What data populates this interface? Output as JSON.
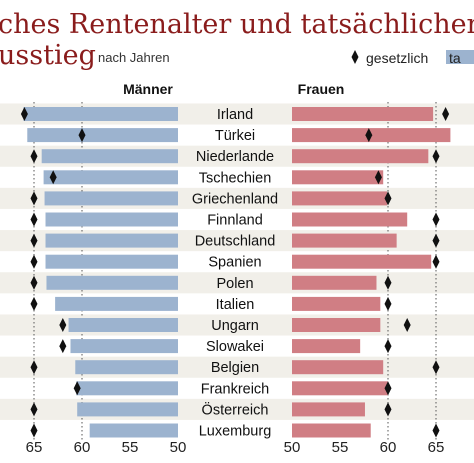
{
  "header": {
    "title_line1": "ches Rentenalter und tatsächlicher",
    "title_line2": "usstieg",
    "subtitle": "nach Jahren"
  },
  "legend": {
    "gesetzlich_label": "gesetzlich",
    "tatsaechlich_label": "ta"
  },
  "colors": {
    "men_bar": "#9cb3cf",
    "women_bar": "#d07e84",
    "title": "#8a1c1c",
    "stripe": "#f1efe9",
    "marker": "#111111"
  },
  "chart_data": {
    "type": "bar",
    "orientation": "horizontal-butterfly",
    "axis": {
      "ticks": [
        65,
        60,
        55,
        50
      ],
      "min": 50,
      "max": 68,
      "reference_lines": [
        60,
        65
      ]
    },
    "panels": {
      "men": {
        "label": "Männer"
      },
      "women": {
        "label": "Frauen"
      }
    },
    "categories": [
      "Irland",
      "Türkei",
      "Niederlande",
      "Tschechien",
      "Griechenland",
      "Finnland",
      "Deutschland",
      "Spanien",
      "Polen",
      "Italien",
      "Ungarn",
      "Slowakei",
      "Belgien",
      "Frankreich",
      "Österreich",
      "Luxemburg"
    ],
    "series": [
      {
        "name": "tatsächlich",
        "panel": "men",
        "values": [
          66.1,
          65.7,
          64.2,
          64.0,
          63.9,
          63.8,
          63.8,
          63.8,
          63.7,
          62.8,
          61.4,
          61.2,
          60.7,
          60.6,
          60.5,
          59.2
        ]
      },
      {
        "name": "gesetzlich",
        "panel": "men",
        "values": [
          66.0,
          60.0,
          65.0,
          63.0,
          65.0,
          65.0,
          65.0,
          65.0,
          65.0,
          65.0,
          62.0,
          62.0,
          65.0,
          60.5,
          65.0,
          65.0
        ]
      },
      {
        "name": "tatsächlich",
        "panel": "women",
        "values": [
          64.7,
          66.5,
          64.2,
          59.5,
          59.9,
          62.0,
          60.9,
          64.5,
          58.8,
          59.2,
          59.2,
          57.1,
          59.5,
          60.0,
          57.6,
          58.2
        ]
      },
      {
        "name": "gesetzlich",
        "panel": "women",
        "values": [
          66.0,
          58.0,
          65.0,
          59.0,
          60.0,
          65.0,
          65.0,
          65.0,
          60.0,
          60.0,
          62.0,
          60.0,
          65.0,
          60.0,
          60.0,
          65.0
        ]
      }
    ]
  }
}
